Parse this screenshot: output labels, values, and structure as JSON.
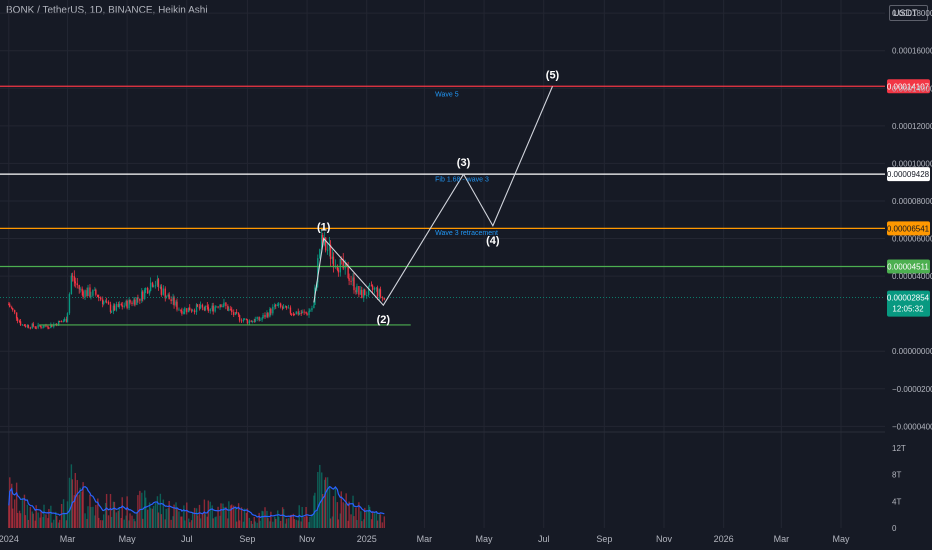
{
  "header": {
    "title": "BONK / TetherUS, 1D, BINANCE, Heikin Ashi",
    "currency": "USDT"
  },
  "chart_data": {
    "type": "candlestick",
    "price_axis": {
      "ylim": [
        -4.3e-05,
        0.000187
      ],
      "ticks": [
        "0.00018000",
        "0.00016000",
        "0.00014000",
        "0.00012000",
        "0.00010000",
        "0.00008000",
        "0.00006000",
        "0.00004000",
        "0.00000000",
        "−0.00002000",
        "−0.00004000"
      ],
      "tick_values": [
        0.00018,
        0.00016,
        0.00014,
        0.00012,
        0.0001,
        8e-05,
        6e-05,
        4e-05,
        0,
        -2e-05,
        -4e-05
      ]
    },
    "volume_axis": {
      "ylim": [
        0,
        13.5
      ],
      "ticks": [
        "12T",
        "8T",
        "4T",
        "0"
      ],
      "tick_values": [
        12,
        8,
        4,
        0
      ]
    },
    "time_axis": {
      "xlim": [
        "2023-12-23",
        "2026-06-15"
      ],
      "ticks": [
        "2024",
        "Mar",
        "May",
        "Jul",
        "Sep",
        "Nov",
        "2025",
        "Mar",
        "May",
        "Jul",
        "Sep",
        "Nov",
        "2026",
        "Mar",
        "May"
      ],
      "tick_dates": [
        "2024-01-01",
        "2024-03-01",
        "2024-05-01",
        "2024-07-01",
        "2024-09-01",
        "2024-11-01",
        "2025-01-01",
        "2025-03-01",
        "2025-05-01",
        "2025-07-01",
        "2025-09-01",
        "2025-11-01",
        "2026-01-01",
        "2026-03-01",
        "2026-05-01"
      ]
    },
    "horizontal_levels": [
      {
        "value": 0.00014107,
        "label": "0.00014107",
        "color": "#f23645"
      },
      {
        "value": 9.428e-05,
        "label": "0.00009428",
        "color": "#ffffff"
      },
      {
        "value": 6.541e-05,
        "label": "0.00006541",
        "color": "#ff9800"
      },
      {
        "value": 4.511e-05,
        "label": "0.00004511",
        "color": "#4caf50"
      }
    ],
    "current_price": {
      "value": 2.854e-05,
      "label": "0.00002854",
      "countdown": "12:05:32",
      "color": "#089981"
    },
    "support_line": {
      "value": 1.4e-05,
      "from": "2024-02-01",
      "to": "2025-02-15",
      "color": "#4caf50"
    },
    "wave_path": [
      {
        "label": "(1)",
        "date": "2024-11-18",
        "value": 6e-05
      },
      {
        "label": "(2)",
        "date": "2025-01-18",
        "value": 2.45e-05
      },
      {
        "label": "(3)",
        "date": "2025-04-10",
        "value": 9.428e-05
      },
      {
        "label": "(4)",
        "date": "2025-05-10",
        "value": 6.68e-05
      },
      {
        "label": "(5)",
        "date": "2025-07-10",
        "value": 0.00014107
      }
    ],
    "annotations": [
      {
        "text": "Wave 5",
        "date": "2025-03-12",
        "value": 0.0001355
      },
      {
        "text": "Fib 1.68 - wave 3",
        "date": "2025-03-12",
        "value": 9.05e-05
      },
      {
        "text": "Wave 3 retracement",
        "date": "2025-03-12",
        "value": 6.2e-05
      }
    ],
    "price_series": {
      "dates": [
        "2024-01-01",
        "2024-01-15",
        "2024-02-01",
        "2024-02-15",
        "2024-03-01",
        "2024-03-05",
        "2024-03-15",
        "2024-04-01",
        "2024-04-15",
        "2024-05-01",
        "2024-05-15",
        "2024-05-28",
        "2024-06-10",
        "2024-06-25",
        "2024-07-10",
        "2024-07-25",
        "2024-08-05",
        "2024-08-20",
        "2024-09-01",
        "2024-09-15",
        "2024-10-01",
        "2024-10-15",
        "2024-11-01",
        "2024-11-08",
        "2024-11-15",
        "2024-11-20",
        "2024-12-01",
        "2024-12-15",
        "2024-12-25",
        "2025-01-10",
        "2025-01-20"
      ],
      "values": [
        2.5e-05,
        1.4e-05,
        1.3e-05,
        1.4e-05,
        1.7e-05,
        4e-05,
        3.2e-05,
        3e-05,
        2.2e-05,
        2.5e-05,
        2.9e-05,
        3.8e-05,
        3e-05,
        2.2e-05,
        2.3e-05,
        2.2e-05,
        2.6e-05,
        1.9e-05,
        1.6e-05,
        1.7e-05,
        2.4e-05,
        2.1e-05,
        2e-05,
        2.4e-05,
        5.8e-05,
        5.6e-05,
        4.8e-05,
        4e-05,
        3e-05,
        3.3e-05,
        2.7e-05
      ]
    },
    "volume_series": {
      "dates": [
        "2024-01-01",
        "2024-01-15",
        "2024-02-01",
        "2024-03-01",
        "2024-03-05",
        "2024-03-15",
        "2024-04-01",
        "2024-05-01",
        "2024-05-28",
        "2024-06-15",
        "2024-07-10",
        "2024-08-05",
        "2024-09-01",
        "2024-10-01",
        "2024-11-01",
        "2024-11-15",
        "2024-11-25",
        "2024-12-10",
        "2025-01-01",
        "2025-01-20"
      ],
      "values": [
        5.5,
        3.5,
        2.0,
        3.0,
        6.5,
        4.5,
        3.5,
        3.0,
        4.0,
        3.0,
        2.5,
        3.5,
        2.0,
        2.0,
        2.2,
        6.5,
        4.5,
        3.5,
        2.5,
        1.2
      ]
    }
  }
}
